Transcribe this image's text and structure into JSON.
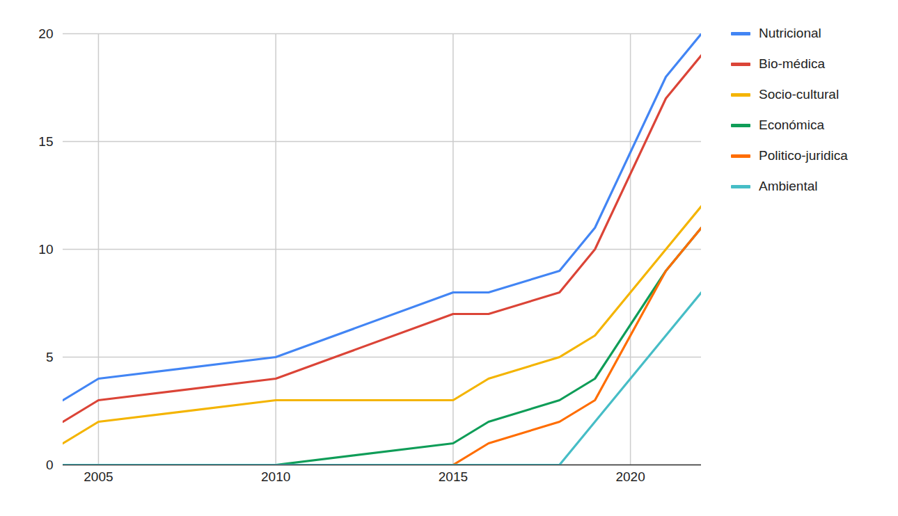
{
  "chart_data": {
    "type": "line",
    "x": [
      2004,
      2005,
      2010,
      2015,
      2016,
      2018,
      2019,
      2021,
      2022
    ],
    "series": [
      {
        "name": "Nutricional",
        "color": "#4285F4",
        "values": [
          3,
          4,
          5,
          8,
          8,
          9,
          11,
          18,
          20
        ]
      },
      {
        "name": "Bio-médica",
        "color": "#DB4437",
        "values": [
          2,
          3,
          4,
          7,
          7,
          8,
          10,
          17,
          19
        ]
      },
      {
        "name": "Socio-cultural",
        "color": "#F4B400",
        "values": [
          1,
          2,
          3,
          3,
          4,
          5,
          6,
          10,
          12
        ]
      },
      {
        "name": "Económica",
        "color": "#0F9D58",
        "values": [
          0,
          0,
          0,
          1,
          2,
          3,
          4,
          9,
          11
        ]
      },
      {
        "name": "Politico-juridica",
        "color": "#FF6D01",
        "values": [
          0,
          0,
          0,
          0,
          1,
          2,
          3,
          9,
          11
        ]
      },
      {
        "name": "Ambiental",
        "color": "#46BDC6",
        "values": [
          0,
          0,
          0,
          0,
          0,
          0,
          2,
          6,
          8
        ]
      }
    ],
    "xlim": [
      2004,
      2022
    ],
    "xticks": [
      2005,
      2010,
      2015,
      2020
    ],
    "ylim": [
      0,
      20
    ],
    "yticks": [
      0,
      5,
      10,
      15,
      20
    ],
    "grid": true,
    "legend": "right"
  }
}
